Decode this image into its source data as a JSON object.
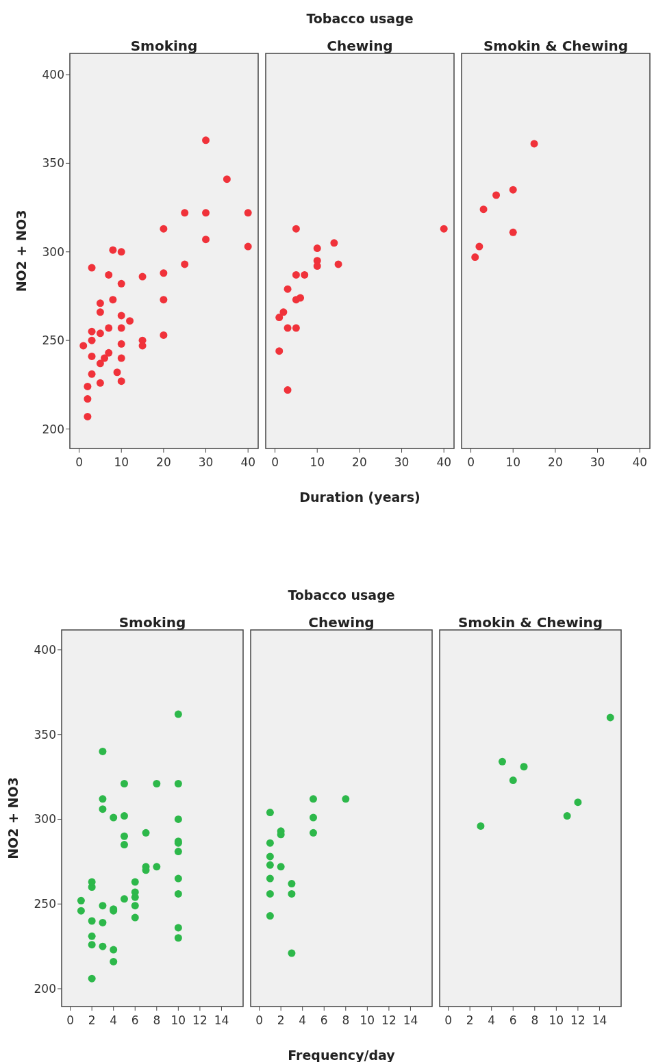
{
  "chart_data": [
    {
      "type": "scatter",
      "title": "Smoking",
      "ylabel": "NO2 + NO3",
      "tick_labels": "xy",
      "marker": "circle",
      "color": "#f0323a",
      "xlim": [
        -2.2,
        42.4
      ],
      "xticks": [
        0,
        10,
        20,
        30,
        40
      ],
      "ylim": [
        189,
        412
      ],
      "yticks": [
        200,
        250,
        300,
        350,
        400
      ],
      "x": [
        1,
        2,
        2,
        2,
        3,
        3,
        3,
        3,
        3,
        5,
        5,
        5,
        5,
        5,
        6,
        7,
        7,
        7,
        8,
        8,
        9,
        10,
        10,
        10,
        10,
        10,
        10,
        10,
        12,
        15,
        15,
        15,
        20,
        20,
        20,
        20,
        25,
        25,
        30,
        30,
        30,
        35,
        40,
        40
      ],
      "values": [
        247,
        207,
        217,
        224,
        291,
        255,
        250,
        241,
        231,
        271,
        266,
        254,
        237,
        226,
        240,
        287,
        257,
        243,
        301,
        273,
        232,
        300,
        282,
        264,
        257,
        248,
        240,
        227,
        261,
        286,
        250,
        247,
        313,
        288,
        273,
        253,
        322,
        293,
        363,
        322,
        307,
        341,
        322,
        303
      ]
    },
    {
      "type": "scatter",
      "title": "Chewing",
      "annotations": [
        "Tobacco usage"
      ],
      "xlabel": "Duration (years)",
      "tick_labels": "x",
      "marker": "circle",
      "color": "#f0323a",
      "xlim": [
        -2.2,
        42.4
      ],
      "xticks": [
        0,
        10,
        20,
        30,
        40
      ],
      "ylim": [
        189,
        412
      ],
      "x": [
        5,
        1,
        2,
        3,
        3,
        5,
        1,
        3,
        5,
        7,
        5,
        6,
        10,
        10,
        10,
        14,
        15,
        40
      ],
      "values": [
        313,
        263,
        266,
        279,
        257,
        257,
        244,
        222,
        287,
        287,
        273,
        274,
        302,
        295,
        292,
        305,
        293,
        313
      ]
    },
    {
      "type": "scatter",
      "title": "Smokin & Chewing",
      "tick_labels": "x",
      "marker": "circle",
      "color": "#f0323a",
      "xlim": [
        -2.2,
        42.4
      ],
      "xticks": [
        0,
        10,
        20,
        30,
        40
      ],
      "ylim": [
        189,
        412
      ],
      "x": [
        1,
        2,
        3,
        6,
        10,
        10,
        15
      ],
      "values": [
        297,
        303,
        324,
        332,
        335,
        311,
        361
      ]
    },
    {
      "type": "scatter",
      "title": "Smoking",
      "ylabel": "NO2 + NO3",
      "tick_labels": "xy",
      "marker": "circle",
      "color": "#2db84a",
      "xlim": [
        -0.8,
        16
      ],
      "xticks": [
        0,
        2,
        4,
        6,
        8,
        10,
        12,
        14
      ],
      "ylim": [
        189.5,
        411.7
      ],
      "yticks": [
        200,
        250,
        300,
        350,
        400
      ],
      "x": [
        1,
        1,
        2,
        2,
        2,
        2,
        2,
        2,
        3,
        3,
        3,
        3,
        3,
        3,
        4,
        4,
        4,
        4,
        4,
        5,
        5,
        5,
        5,
        5,
        6,
        6,
        6,
        6,
        6,
        7,
        7,
        7,
        8,
        8,
        10,
        10,
        10,
        10,
        10,
        10,
        10,
        10,
        10,
        10
      ],
      "values": [
        252,
        246,
        206,
        226,
        231,
        240,
        260,
        263,
        340,
        312,
        306,
        249,
        239,
        225,
        301,
        247,
        246,
        223,
        216,
        321,
        302,
        290,
        285,
        253,
        263,
        257,
        254,
        249,
        242,
        292,
        272,
        270,
        321,
        272,
        362,
        321,
        300,
        287,
        286,
        281,
        265,
        256,
        236,
        230
      ]
    },
    {
      "type": "scatter",
      "title": "Chewing",
      "annotations": [
        "Tobacco usage"
      ],
      "xlabel": "Frequency/day",
      "tick_labels": "x",
      "marker": "circle",
      "color": "#2db84a",
      "xlim": [
        -0.8,
        16
      ],
      "xticks": [
        0,
        2,
        4,
        6,
        8,
        10,
        12,
        14
      ],
      "ylim": [
        189.5,
        411.7
      ],
      "x": [
        1,
        1,
        1,
        1,
        1,
        1,
        1,
        2,
        2,
        2,
        3,
        3,
        3,
        5,
        5,
        5,
        8
      ],
      "values": [
        304,
        286,
        278,
        273,
        265,
        256,
        243,
        293,
        291,
        272,
        262,
        256,
        221,
        312,
        301,
        292,
        312
      ]
    },
    {
      "type": "scatter",
      "title": "Smokin & Chewing",
      "tick_labels": "x",
      "marker": "circle",
      "color": "#2db84a",
      "xlim": [
        -0.8,
        16
      ],
      "xticks": [
        0,
        2,
        4,
        6,
        8,
        10,
        12,
        14
      ],
      "ylim": [
        189.5,
        411.7
      ],
      "x": [
        3,
        5,
        6,
        7,
        11,
        12,
        15
      ],
      "values": [
        296,
        334,
        323,
        331,
        302,
        310,
        360
      ]
    }
  ]
}
